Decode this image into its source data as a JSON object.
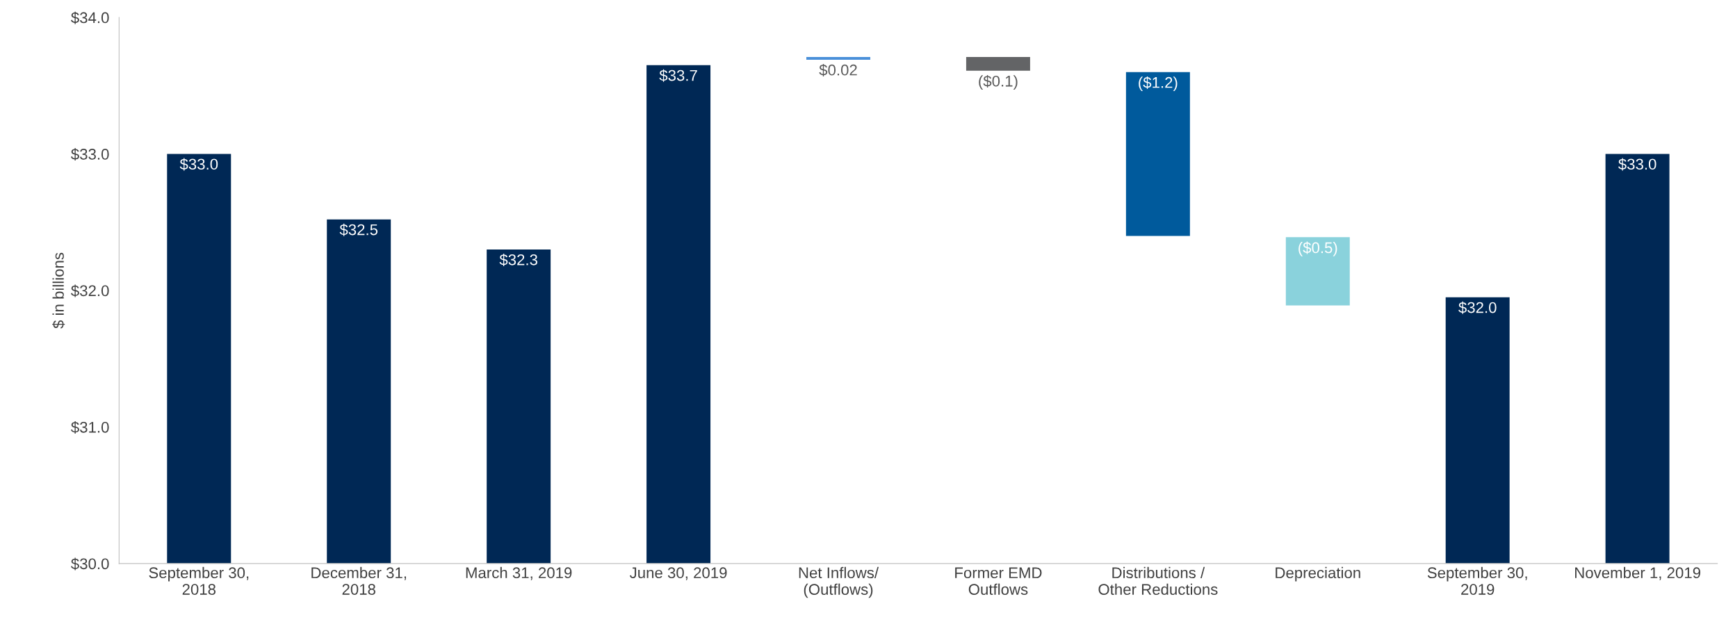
{
  "chart_data": {
    "type": "bar",
    "ylabel": "$ in billions",
    "categories": [
      "September 30,\n2018",
      "December 31,\n2018",
      "March 31, 2019",
      "June 30, 2019",
      "Net Inflows/\n(Outflows)",
      "Former EMD\nOutflows",
      "Distributions /\nOther Reductions",
      "Depreciation",
      "September 30,\n2019",
      "November 1, 2019"
    ],
    "values": [
      33.0,
      32.52,
      32.3,
      33.65,
      0.02,
      -0.1,
      -1.2,
      -0.5,
      31.95,
      33.0
    ],
    "base": [
      null,
      null,
      null,
      null,
      33.69,
      33.71,
      33.6,
      32.39,
      null,
      null
    ],
    "colors": [
      "#002855",
      "#002855",
      "#002855",
      "#002855",
      "#4a90d9",
      "#636466",
      "#005a9c",
      "#8ad2dc",
      "#002855",
      "#002855"
    ],
    "value_labels": [
      "$33.0",
      "$32.5",
      "$32.3",
      "$33.7",
      "$0.02",
      "($0.1)",
      "($1.2)",
      "($0.5)",
      "$32.0",
      "$33.0"
    ],
    "ylim": [
      30,
      34
    ],
    "yticks": [
      {
        "value": 30,
        "label": "$30.0"
      },
      {
        "value": 31,
        "label": "$31.0"
      },
      {
        "value": 32,
        "label": "$32.0"
      },
      {
        "value": 33,
        "label": "$33.0"
      },
      {
        "value": 34,
        "label": "$34.0"
      }
    ],
    "grid": false,
    "legend": false
  }
}
